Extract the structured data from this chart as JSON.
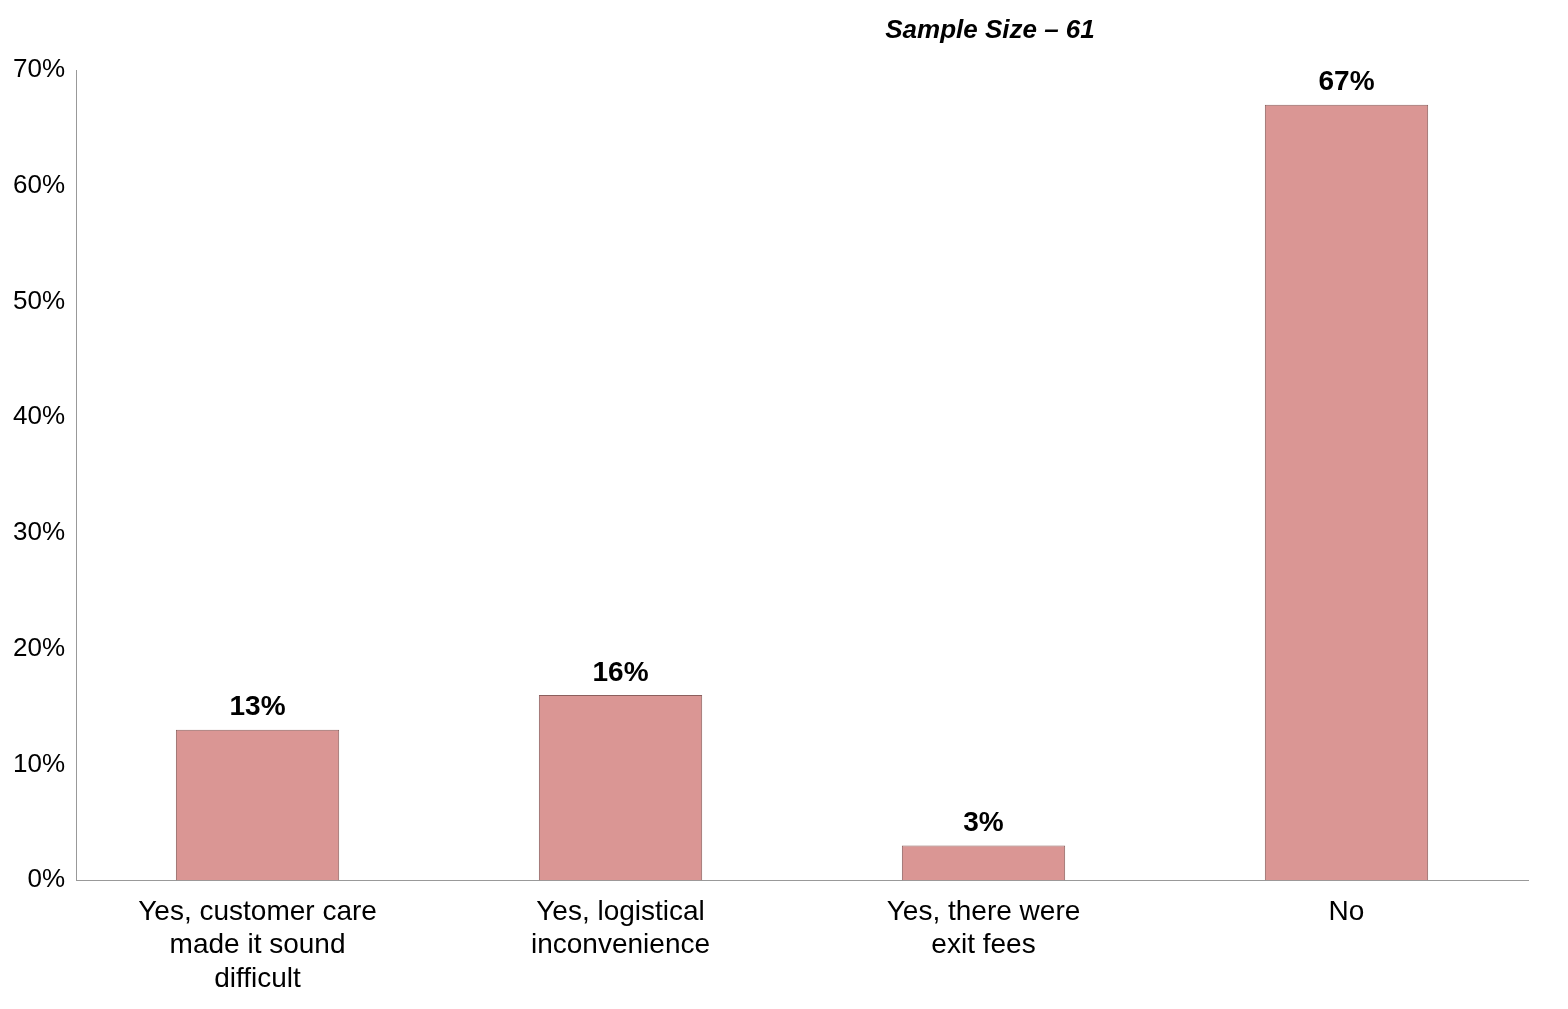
{
  "chart_data": {
    "type": "bar",
    "categories": [
      "Yes, customer care made it sound difficult",
      "Yes, logistical inconvenience",
      "Yes, there were exit fees",
      "No"
    ],
    "values": [
      13,
      16,
      3,
      67
    ],
    "color": "#da9694",
    "value_labels": [
      "13%",
      "16%",
      "3%",
      "67%"
    ],
    "ylim": [
      0,
      70
    ],
    "yticks": [
      {
        "value": 0,
        "label": "0%"
      },
      {
        "value": 10,
        "label": "10%"
      },
      {
        "value": 20,
        "label": "20%"
      },
      {
        "value": 30,
        "label": "30%"
      },
      {
        "value": 40,
        "label": "40%"
      },
      {
        "value": 50,
        "label": "50%"
      },
      {
        "value": 60,
        "label": "60%"
      },
      {
        "value": 70,
        "label": "70%"
      }
    ],
    "grid": false,
    "legend": false,
    "annotations": [
      "Sample Size – 61"
    ]
  }
}
